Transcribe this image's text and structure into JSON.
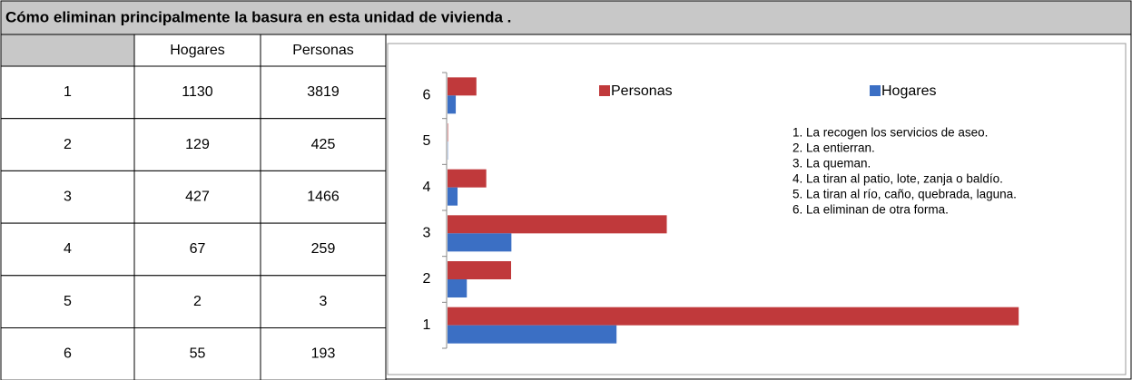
{
  "title": "Cómo eliminan principalmente la basura en esta unidad de vivienda .",
  "chart_data": {
    "type": "hbar",
    "categories": [
      "1",
      "2",
      "3",
      "4",
      "5",
      "6"
    ],
    "series": [
      {
        "name": "Hogares",
        "color": "#3b6fc4",
        "values": [
          1130,
          129,
          427,
          67,
          2,
          55
        ]
      },
      {
        "name": "Personas",
        "color": "#c0393b",
        "values": [
          3819,
          425,
          1466,
          259,
          3,
          193
        ]
      }
    ],
    "xlim": [
      0,
      4000
    ],
    "annotations": [
      "1. La recogen los servicios de aseo.",
      "2. La entierran.",
      "3. La queman.",
      "4. La tiran al patio, lote, zanja o baldío.",
      "5. La tiran al río, caño, quebrada, laguna.",
      "6. La eliminan de otra forma."
    ]
  }
}
